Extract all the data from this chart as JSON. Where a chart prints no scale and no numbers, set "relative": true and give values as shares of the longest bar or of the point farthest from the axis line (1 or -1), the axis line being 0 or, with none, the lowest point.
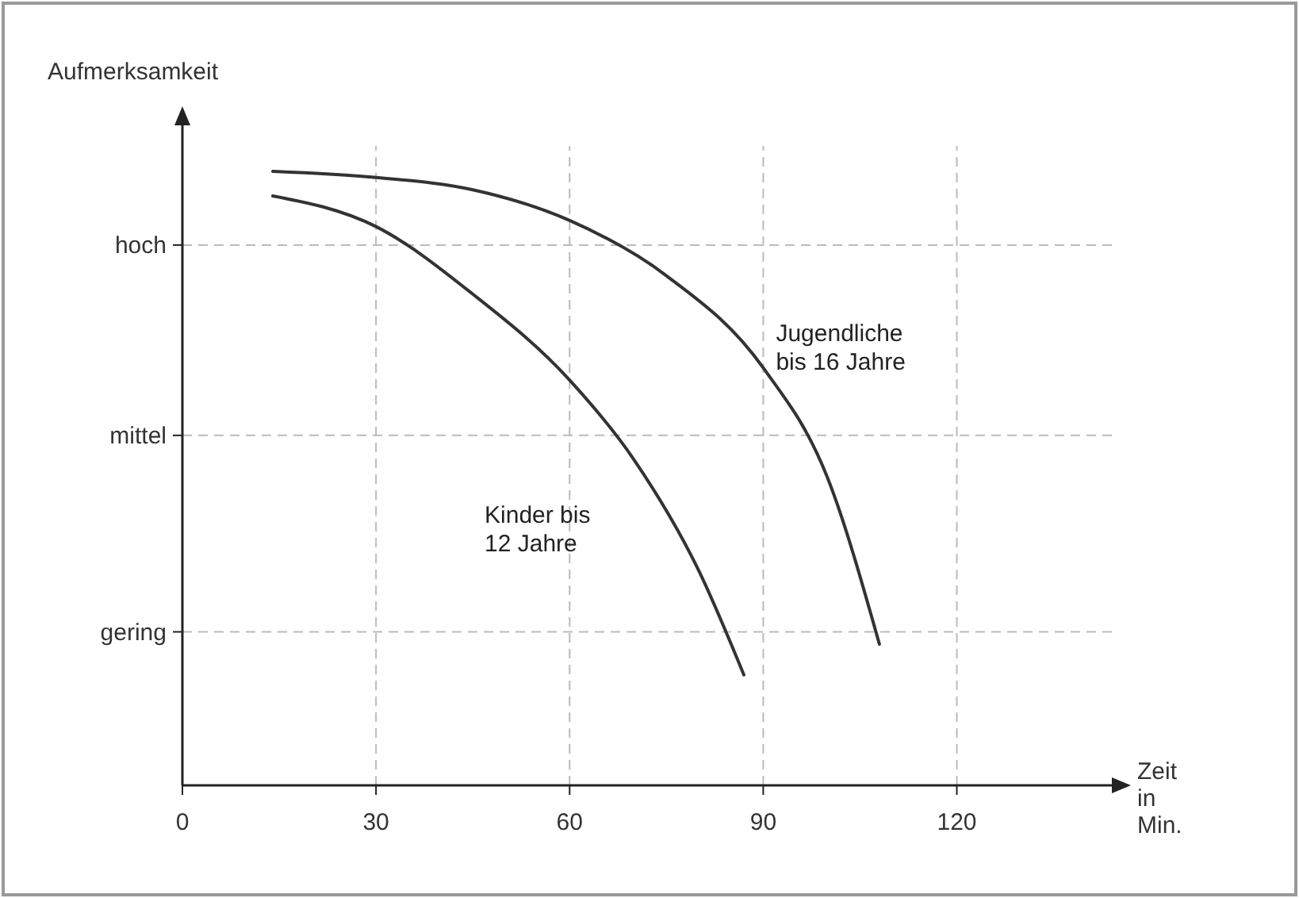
{
  "chart_data": {
    "type": "line",
    "ylabel": "Aufmerksamkeit",
    "xlabel": "Zeit in Min.",
    "xlim": [
      0,
      145
    ],
    "xticks": [
      0,
      30,
      60,
      90,
      120
    ],
    "relative": true,
    "grid": "x",
    "marker": "none",
    "line_style": "solid",
    "ref_lines": [
      {
        "axis": "y",
        "value": 0.88,
        "label": "hoch",
        "color": "#bbbbbb",
        "line_style": "dashed"
      },
      {
        "axis": "y",
        "value": 0.57,
        "label": "mittel",
        "color": "#bbbbbb",
        "line_style": "dashed"
      },
      {
        "axis": "y",
        "value": 0.25,
        "label": "gering",
        "color": "#bbbbbb",
        "line_style": "dashed"
      }
    ],
    "series": [
      {
        "name": "Kinder bis 12 Jahre",
        "color": "#333333",
        "x": [
          14,
          30,
          45,
          60,
          70,
          80,
          87
        ],
        "values": [
          0.96,
          0.91,
          0.8,
          0.66,
          0.53,
          0.35,
          0.18
        ]
      },
      {
        "name": "Jugendliche bis 16 Jahre",
        "color": "#333333",
        "x": [
          14,
          30,
          45,
          60,
          75,
          90,
          100,
          108
        ],
        "values": [
          1,
          0.99,
          0.97,
          0.92,
          0.83,
          0.68,
          0.5,
          0.23
        ]
      }
    ]
  }
}
